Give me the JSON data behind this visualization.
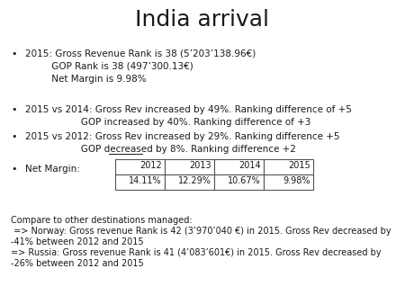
{
  "title": "India arrival",
  "title_fontsize": 18,
  "background_color": "#ffffff",
  "bullet1_line1": "2015: Gross Revenue Rank is 38 (5’203’138.96€)",
  "bullet1_line2": "         GOP Rank is 38 (497’300.13€)",
  "bullet1_line3": "         Net Margin is 9.98%",
  "bullet2_line1": "2015 vs 2014: Gross Rev increased by 49%. Ranking difference of +5",
  "bullet2_line2": "                   GOP increased by 40%. Ranking difference of +3",
  "bullet3_line1": "2015 vs 2012: Gross Rev increased by 29%. Ranking difference +5",
  "bullet3_line2_prefix": "                   GOP ",
  "bullet3_line2_underlined": "decreased",
  "bullet3_line2_suffix": " by 8%. Ranking difference +2",
  "net_margin_label": "Net Margin:",
  "table_years": [
    "2012",
    "2013",
    "2014",
    "2015"
  ],
  "table_values": [
    "14.11%",
    "12.29%",
    "10.67%",
    "9.98%"
  ],
  "compare_line1": "Compare to other destinations managed:",
  "compare_line2": " => Norway: Gross revenue Rank is 42 (3’970’040 €) in 2015. Gross Rev decreased by",
  "compare_line3": "-41% between 2012 and 2015",
  "compare_line4": "=> Russia: Gross revenue Rank is 41 (4’083’601€) in 2015. Gross Rev decreased by",
  "compare_line5": "-26% between 2012 and 2015",
  "text_color": "#1a1a1a",
  "body_fontsize": 7.5,
  "compare_fontsize": 7.0,
  "bullet_fontsize": 7.5
}
